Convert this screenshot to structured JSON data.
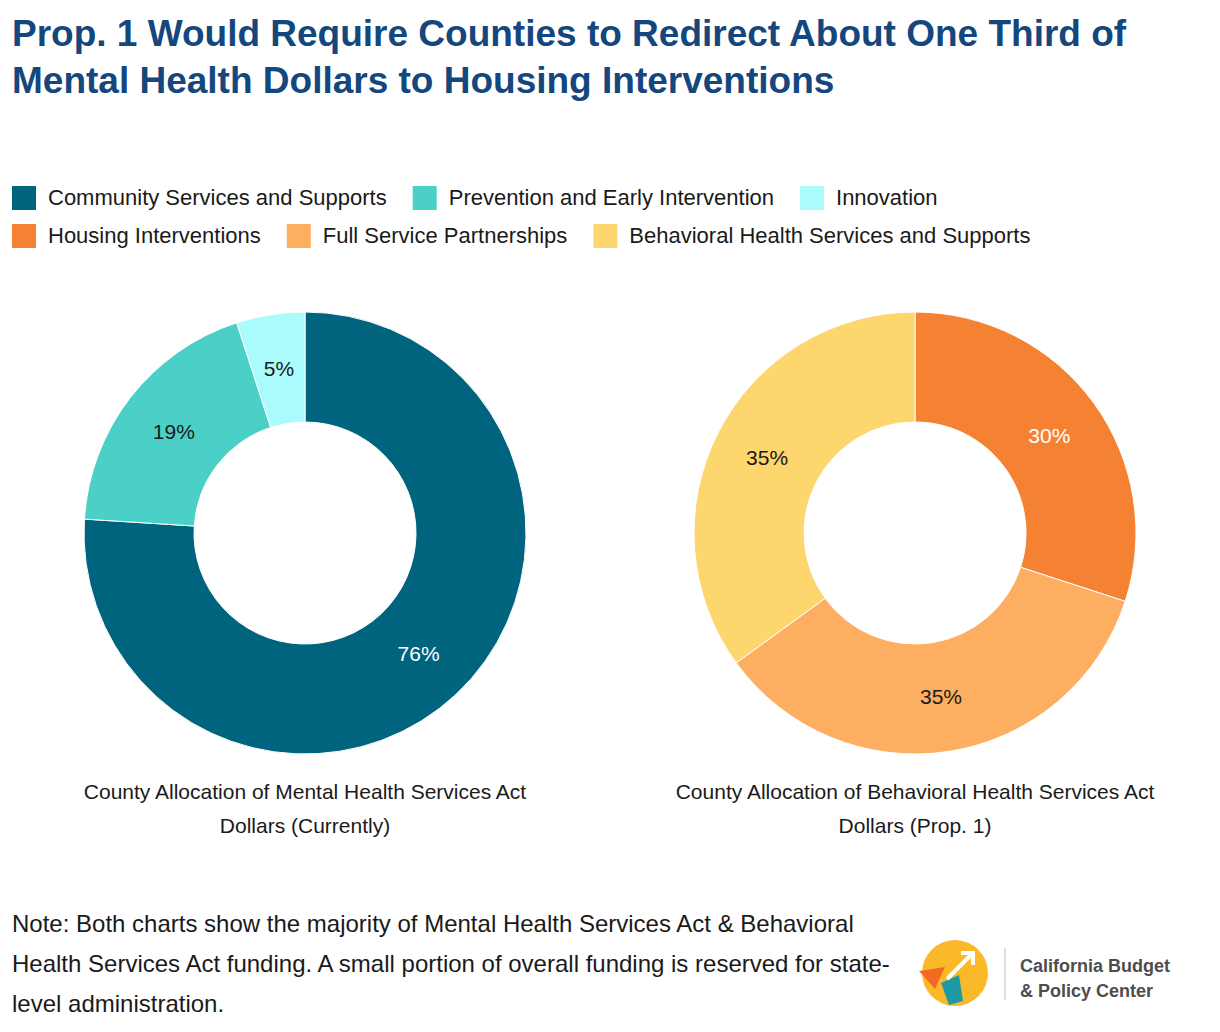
{
  "title": "Prop. 1 Would Require Counties to Redirect About One Third of Mental Health Dollars to Housing Interventions",
  "chart_data": [
    {
      "type": "pie",
      "title": "County Allocation of Mental Health Services Act Dollars (Currently)",
      "categories": [
        "Community Services and Supports",
        "Prevention and Early Intervention",
        "Innovation"
      ],
      "values": [
        76,
        19,
        5
      ],
      "value_labels": [
        "76%",
        "19%",
        "5%"
      ],
      "colors": [
        "#00647f",
        "#4ad0c6",
        "#aafcfc"
      ],
      "data_labels": true,
      "legend": "top"
    },
    {
      "type": "pie",
      "title": "County Allocation of Behavioral Health Services Act Dollars (Prop. 1)",
      "categories": [
        "Housing Interventions",
        "Full Service Partnerships",
        "Behavioral Health Services and Supports"
      ],
      "values": [
        30,
        35,
        35
      ],
      "value_labels": [
        "30%",
        "35%",
        "35%"
      ],
      "colors": [
        "#f58233",
        "#fdae61",
        "#fed66e"
      ],
      "data_labels": true,
      "legend": "top"
    }
  ],
  "note": "Note: Both charts show the majority of Mental Health Services Act & Behavioral Health Services Act funding. A small portion of overall funding is reserved for state-level administration.",
  "logo": [
    "California Budget",
    "& Policy Center"
  ]
}
